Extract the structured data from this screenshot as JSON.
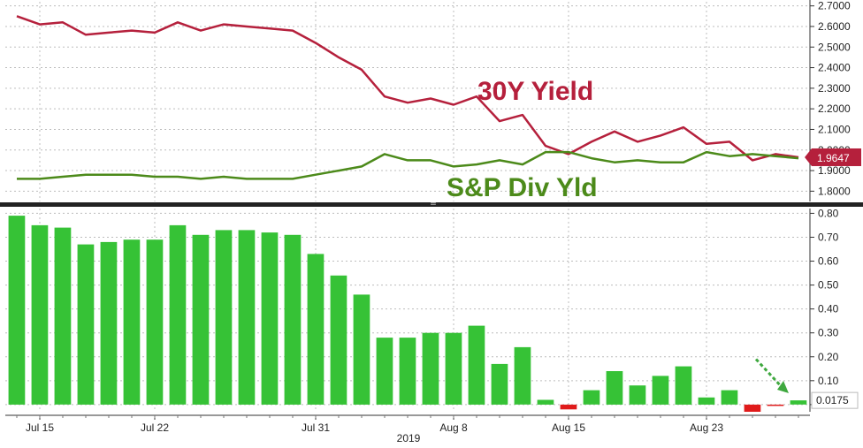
{
  "chart_data": [
    {
      "type": "line",
      "title": "",
      "ylim": [
        1.75,
        2.72
      ],
      "y_ticks": [
        "1.8000",
        "1.9000",
        "2.0000",
        "2.1000",
        "2.2000",
        "2.3000",
        "2.4000",
        "2.5000",
        "2.6000",
        "2.7000"
      ],
      "y_tick_values": [
        1.8,
        1.9,
        2.0,
        2.1,
        2.2,
        2.3,
        2.4,
        2.5,
        2.6,
        2.7
      ],
      "grid": true,
      "series": [
        {
          "name": "30Y Yield",
          "color": "#b5203c",
          "values": [
            2.65,
            2.61,
            2.62,
            2.56,
            2.57,
            2.58,
            2.57,
            2.62,
            2.58,
            2.61,
            2.6,
            2.59,
            2.58,
            2.52,
            2.45,
            2.39,
            2.26,
            2.23,
            2.25,
            2.22,
            2.26,
            2.14,
            2.17,
            2.02,
            1.98,
            2.04,
            2.09,
            2.04,
            2.07,
            2.11,
            2.03,
            2.04,
            1.95,
            1.98,
            1.9647
          ],
          "last_value_label": "1.9647"
        },
        {
          "name": "S&P Div Yld",
          "color": "#4c8a1a",
          "values": [
            1.86,
            1.86,
            1.87,
            1.88,
            1.88,
            1.88,
            1.87,
            1.87,
            1.86,
            1.87,
            1.86,
            1.86,
            1.86,
            1.88,
            1.9,
            1.92,
            1.98,
            1.95,
            1.95,
            1.92,
            1.93,
            1.95,
            1.93,
            1.99,
            1.99,
            1.96,
            1.94,
            1.95,
            1.94,
            1.94,
            1.99,
            1.97,
            1.98,
            1.97,
            1.96
          ]
        }
      ]
    },
    {
      "type": "bar",
      "title": "",
      "ylim": [
        -0.03,
        0.82
      ],
      "y_ticks": [
        "0.00",
        "0.10",
        "0.20",
        "0.30",
        "0.40",
        "0.50",
        "0.60",
        "0.70",
        "0.80"
      ],
      "y_tick_values": [
        0.0,
        0.1,
        0.2,
        0.3,
        0.4,
        0.5,
        0.6,
        0.7,
        0.8
      ],
      "grid": true,
      "positive_color": "#36c236",
      "negative_color": "#e01b1b",
      "values": [
        0.79,
        0.75,
        0.74,
        0.67,
        0.68,
        0.69,
        0.69,
        0.75,
        0.71,
        0.73,
        0.73,
        0.72,
        0.71,
        0.63,
        0.54,
        0.46,
        0.28,
        0.28,
        0.3,
        0.3,
        0.33,
        0.17,
        0.24,
        0.02,
        -0.02,
        0.06,
        0.14,
        0.08,
        0.12,
        0.16,
        0.03,
        0.06,
        -0.03,
        -0.005,
        0.0175
      ],
      "last_value_label": "0.0175"
    }
  ],
  "x_axis": {
    "tick_labels": [
      "Jul 15",
      "Jul 22",
      "Jul 31",
      "Aug 8",
      "Aug 15",
      "Aug 23"
    ],
    "tick_indices": [
      1,
      6,
      13,
      19,
      24,
      30
    ],
    "year_label": "2019"
  },
  "annotations": {
    "yield_label": "30Y Yield",
    "yield_color": "#b5203c",
    "div_label": "S&P Div Yld",
    "div_color": "#4c8a1a",
    "arrow_color": "#3fa83f"
  }
}
